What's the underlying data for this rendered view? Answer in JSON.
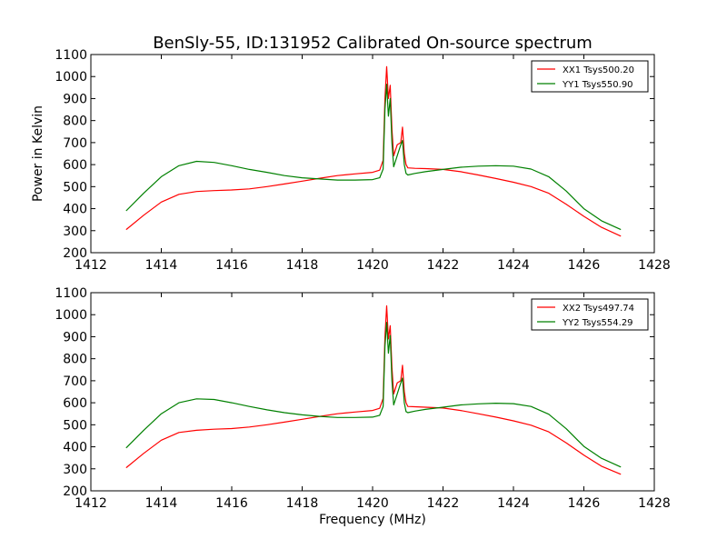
{
  "figure": {
    "title": "BenSly-55, ID:131952 Calibrated On-source spectrum",
    "xlabel": "Frequency (MHz)",
    "ylabel": "Power in Kelvin"
  },
  "colors": {
    "red": "#ff0000",
    "green": "#008000"
  },
  "chart_data": [
    {
      "type": "line",
      "xlim": [
        1412,
        1428
      ],
      "ylim": [
        200,
        1100
      ],
      "xticks": [
        1412,
        1414,
        1416,
        1418,
        1420,
        1422,
        1424,
        1426,
        1428
      ],
      "yticks": [
        200,
        300,
        400,
        500,
        600,
        700,
        800,
        900,
        1000,
        1100
      ],
      "legend_position": "top-right",
      "series": [
        {
          "name": "XX1 Tsys500.20",
          "color": "#ff0000",
          "x": [
            1413.0,
            1413.5,
            1414.0,
            1414.5,
            1415.0,
            1415.5,
            1416.0,
            1416.5,
            1417.0,
            1417.5,
            1418.0,
            1418.5,
            1419.0,
            1419.5,
            1420.0,
            1420.2,
            1420.3,
            1420.35,
            1420.4,
            1420.45,
            1420.5,
            1420.55,
            1420.6,
            1420.7,
            1420.8,
            1420.85,
            1420.9,
            1420.95,
            1421.0,
            1421.2,
            1421.5,
            1422.0,
            1422.5,
            1423.0,
            1423.5,
            1424.0,
            1424.5,
            1425.0,
            1425.5,
            1426.0,
            1426.5,
            1427.05
          ],
          "y": [
            305,
            370,
            430,
            465,
            478,
            482,
            485,
            490,
            500,
            512,
            525,
            538,
            550,
            558,
            565,
            575,
            620,
            900,
            1045,
            900,
            960,
            760,
            640,
            690,
            700,
            770,
            650,
            600,
            585,
            583,
            582,
            578,
            568,
            553,
            537,
            520,
            500,
            470,
            420,
            365,
            315,
            275
          ]
        },
        {
          "name": "YY1 Tsys550.90",
          "color": "#008000",
          "x": [
            1413.0,
            1413.5,
            1414.0,
            1414.5,
            1415.0,
            1415.5,
            1416.0,
            1416.5,
            1417.0,
            1417.5,
            1418.0,
            1418.5,
            1419.0,
            1419.5,
            1420.0,
            1420.2,
            1420.3,
            1420.35,
            1420.4,
            1420.45,
            1420.5,
            1420.55,
            1420.6,
            1420.7,
            1420.8,
            1420.85,
            1420.9,
            1420.95,
            1421.0,
            1421.2,
            1421.5,
            1422.0,
            1422.5,
            1423.0,
            1423.5,
            1424.0,
            1424.5,
            1425.0,
            1425.5,
            1426.0,
            1426.5,
            1427.05
          ],
          "y": [
            390,
            470,
            545,
            595,
            615,
            610,
            595,
            578,
            565,
            550,
            540,
            535,
            530,
            530,
            532,
            540,
            580,
            850,
            965,
            820,
            900,
            700,
            590,
            640,
            690,
            710,
            600,
            560,
            553,
            560,
            568,
            578,
            588,
            593,
            595,
            593,
            580,
            545,
            480,
            400,
            345,
            305
          ]
        }
      ]
    },
    {
      "type": "line",
      "xlim": [
        1412,
        1428
      ],
      "ylim": [
        200,
        1100
      ],
      "xticks": [
        1412,
        1414,
        1416,
        1418,
        1420,
        1422,
        1424,
        1426,
        1428
      ],
      "yticks": [
        200,
        300,
        400,
        500,
        600,
        700,
        800,
        900,
        1000,
        1100
      ],
      "legend_position": "top-right",
      "series": [
        {
          "name": "XX2 Tsys497.74",
          "color": "#ff0000",
          "x": [
            1413.0,
            1413.5,
            1414.0,
            1414.5,
            1415.0,
            1415.5,
            1416.0,
            1416.5,
            1417.0,
            1417.5,
            1418.0,
            1418.5,
            1419.0,
            1419.5,
            1420.0,
            1420.2,
            1420.3,
            1420.35,
            1420.4,
            1420.45,
            1420.5,
            1420.55,
            1420.6,
            1420.7,
            1420.8,
            1420.85,
            1420.9,
            1420.95,
            1421.0,
            1421.2,
            1421.5,
            1422.0,
            1422.5,
            1423.0,
            1423.5,
            1424.0,
            1424.5,
            1425.0,
            1425.5,
            1426.0,
            1426.5,
            1427.05
          ],
          "y": [
            305,
            370,
            430,
            465,
            475,
            480,
            483,
            490,
            500,
            512,
            525,
            538,
            550,
            558,
            565,
            575,
            620,
            900,
            1040,
            890,
            950,
            760,
            640,
            690,
            700,
            770,
            650,
            600,
            583,
            582,
            580,
            576,
            565,
            550,
            535,
            518,
            498,
            468,
            418,
            362,
            312,
            275
          ]
        },
        {
          "name": "YY2 Tsys554.29",
          "color": "#008000",
          "x": [
            1413.0,
            1413.5,
            1414.0,
            1414.5,
            1415.0,
            1415.5,
            1416.0,
            1416.5,
            1417.0,
            1417.5,
            1418.0,
            1418.5,
            1419.0,
            1419.5,
            1420.0,
            1420.2,
            1420.3,
            1420.35,
            1420.4,
            1420.45,
            1420.5,
            1420.55,
            1420.6,
            1420.7,
            1420.8,
            1420.85,
            1420.9,
            1420.95,
            1421.0,
            1421.2,
            1421.5,
            1422.0,
            1422.5,
            1423.0,
            1423.5,
            1424.0,
            1424.5,
            1425.0,
            1425.5,
            1426.0,
            1426.5,
            1427.05
          ],
          "y": [
            395,
            475,
            550,
            600,
            618,
            615,
            600,
            583,
            568,
            555,
            545,
            538,
            533,
            533,
            535,
            543,
            583,
            855,
            965,
            825,
            905,
            700,
            590,
            640,
            690,
            712,
            600,
            560,
            555,
            562,
            570,
            580,
            590,
            595,
            598,
            596,
            583,
            548,
            482,
            402,
            348,
            308
          ]
        }
      ]
    }
  ]
}
